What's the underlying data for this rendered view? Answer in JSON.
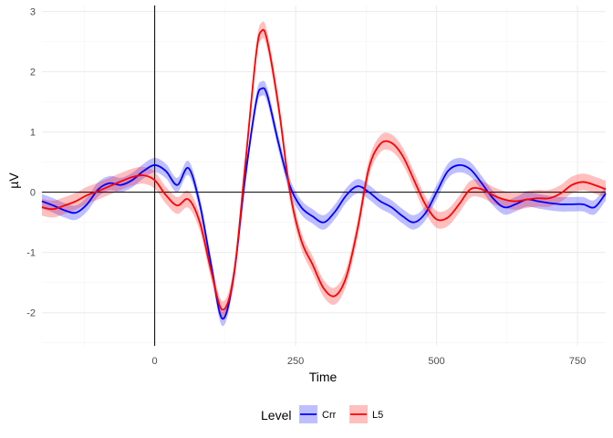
{
  "chart_data": {
    "type": "line",
    "title": "",
    "xlabel": "Time",
    "ylabel": "µV",
    "xlim": [
      -200,
      800
    ],
    "ylim": [
      -2.55,
      3.1
    ],
    "x_ticks": [
      0,
      250,
      500,
      750
    ],
    "x_tick_labels": [
      "0",
      "250",
      "500",
      "750"
    ],
    "y_ticks": [
      -2,
      -1,
      0,
      1,
      2,
      3
    ],
    "y_tick_labels": [
      "-2",
      "-1",
      "0",
      "1",
      "2",
      "3"
    ],
    "grid": true,
    "reference_lines": {
      "x": 0,
      "y": 0
    },
    "legend": {
      "title": "Level",
      "position": "bottom"
    },
    "ribbon_halfwidth": {
      "Crr": 0.12,
      "L5": 0.14
    },
    "series": [
      {
        "name": "Crr",
        "color": "#0000ff",
        "fill": "#0000ff",
        "x": [
          -200,
          -180,
          -160,
          -140,
          -120,
          -100,
          -80,
          -60,
          -40,
          -20,
          0,
          20,
          40,
          60,
          80,
          100,
          120,
          140,
          160,
          180,
          190,
          200,
          220,
          240,
          260,
          280,
          300,
          320,
          340,
          360,
          380,
          400,
          420,
          440,
          460,
          480,
          500,
          520,
          540,
          560,
          580,
          600,
          620,
          640,
          660,
          680,
          700,
          720,
          740,
          760,
          780,
          800
        ],
        "y": [
          -0.15,
          -0.22,
          -0.3,
          -0.34,
          -0.2,
          0.05,
          0.15,
          0.12,
          0.2,
          0.35,
          0.45,
          0.35,
          0.12,
          0.4,
          -0.2,
          -1.2,
          -2.1,
          -1.4,
          0.2,
          1.5,
          1.72,
          1.6,
          0.8,
          0.1,
          -0.25,
          -0.4,
          -0.5,
          -0.32,
          -0.05,
          0.1,
          0.0,
          -0.15,
          -0.25,
          -0.4,
          -0.5,
          -0.35,
          0.0,
          0.35,
          0.45,
          0.38,
          0.15,
          -0.1,
          -0.25,
          -0.2,
          -0.12,
          -0.15,
          -0.18,
          -0.2,
          -0.2,
          -0.2,
          -0.25,
          -0.02
        ]
      },
      {
        "name": "L5",
        "color": "#ff0000",
        "fill": "#ff0000",
        "x": [
          -200,
          -180,
          -160,
          -140,
          -120,
          -100,
          -80,
          -60,
          -40,
          -20,
          0,
          20,
          40,
          60,
          80,
          100,
          120,
          140,
          160,
          180,
          190,
          200,
          220,
          240,
          260,
          280,
          300,
          320,
          340,
          360,
          380,
          400,
          420,
          440,
          460,
          480,
          500,
          520,
          540,
          560,
          580,
          600,
          620,
          640,
          660,
          680,
          700,
          720,
          740,
          760,
          780,
          800
        ],
        "y": [
          -0.25,
          -0.28,
          -0.22,
          -0.15,
          -0.05,
          0.02,
          0.1,
          0.18,
          0.25,
          0.28,
          0.2,
          -0.05,
          -0.22,
          -0.12,
          -0.5,
          -1.3,
          -1.95,
          -1.4,
          0.4,
          2.3,
          2.68,
          2.5,
          1.4,
          0.0,
          -0.8,
          -1.2,
          -1.6,
          -1.72,
          -1.4,
          -0.6,
          0.4,
          0.8,
          0.82,
          0.6,
          0.2,
          -0.2,
          -0.45,
          -0.42,
          -0.2,
          0.05,
          0.05,
          -0.05,
          -0.12,
          -0.15,
          -0.12,
          -0.1,
          -0.1,
          -0.02,
          0.12,
          0.17,
          0.12,
          0.05
        ]
      }
    ]
  }
}
